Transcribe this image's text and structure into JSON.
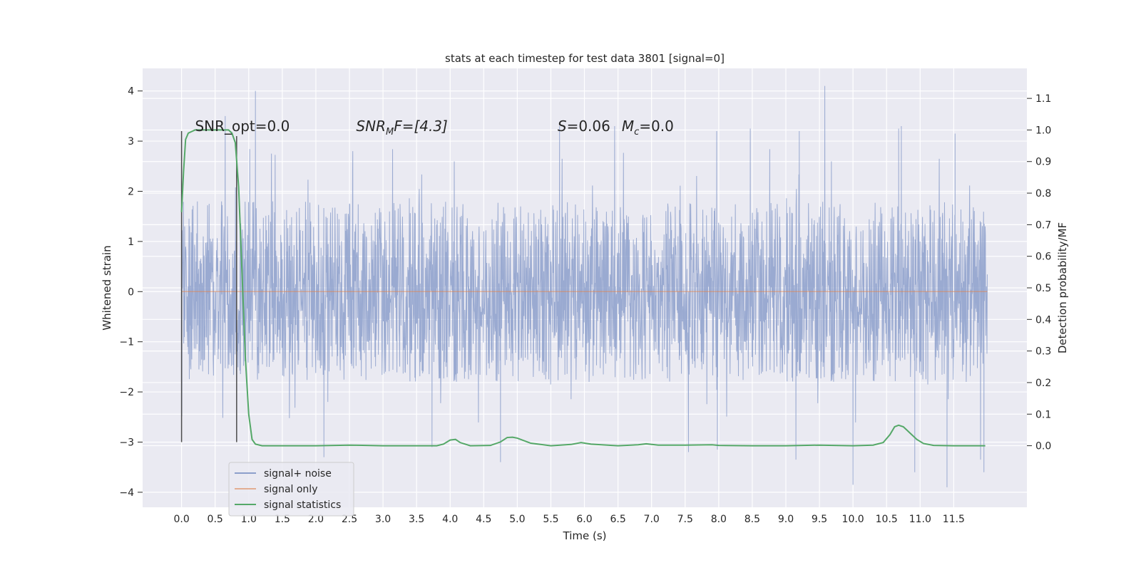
{
  "chart_data": {
    "type": "line",
    "title": "stats at each timestep for test data 3801 [signal=0]",
    "xlabel": "Time (s)",
    "ylabel_left": "Whitened strain",
    "ylabel_right": "Detection probability/MF",
    "xlim": [
      -0.58,
      12.59
    ],
    "ylim_left": [
      -4.3,
      4.45
    ],
    "ylim_right": [
      -0.195,
      1.195
    ],
    "x_ticks": [
      0.0,
      0.5,
      1.0,
      1.5,
      2.0,
      2.5,
      3.0,
      3.5,
      4.0,
      4.5,
      5.0,
      5.5,
      6.0,
      6.5,
      7.0,
      7.5,
      8.0,
      8.5,
      9.0,
      9.5,
      10.0,
      10.5,
      11.0,
      11.5
    ],
    "x_tick_labels": [
      "0.0",
      "0.5",
      "1.0",
      "1.5",
      "2.0",
      "2.5",
      "3.0",
      "3.5",
      "4.0",
      "4.5",
      "5.0",
      "5.5",
      "6.0",
      "6.5",
      "7.0",
      "7.5",
      "8.0",
      "8.5",
      "9.0",
      "9.5",
      "10.0",
      "10.5",
      "11.0",
      "11.5"
    ],
    "y_left_ticks": [
      4,
      3,
      2,
      1,
      0,
      -1,
      -2,
      -3,
      -4
    ],
    "y_left_tick_labels": [
      "4",
      "3",
      "2",
      "1",
      "0",
      "−1",
      "−2",
      "−3",
      "−4"
    ],
    "y_right_ticks": [
      1.1,
      1.0,
      0.9,
      0.8,
      0.7,
      0.6,
      0.5,
      0.4,
      0.3,
      0.2,
      0.1,
      0.0
    ],
    "y_right_tick_labels": [
      "1.1",
      "1.0",
      "0.9",
      "0.8",
      "0.7",
      "0.6",
      "0.5",
      "0.4",
      "0.3",
      "0.2",
      "0.1",
      "0.0"
    ],
    "grid": true,
    "legend_position": "lower-left",
    "series": [
      {
        "name": "signal+ noise",
        "axis": "left",
        "color": "#8c9fcb",
        "style": "dense noise trace",
        "x_range": [
          0.0,
          12.0
        ],
        "typical_band": [
          -1.8,
          1.8
        ],
        "peaks": [
          {
            "x": 1.1,
            "y": 4.0
          },
          {
            "x": 0.65,
            "y": 3.5
          },
          {
            "x": 9.58,
            "y": 4.1
          },
          {
            "x": 10.72,
            "y": 3.3
          },
          {
            "x": 10.68,
            "y": 3.25
          },
          {
            "x": 8.47,
            "y": 3.25
          },
          {
            "x": 7.97,
            "y": 3.2
          },
          {
            "x": 5.63,
            "y": 3.3
          },
          {
            "x": 9.2,
            "y": 3.2
          },
          {
            "x": 11.52,
            "y": 3.15
          },
          {
            "x": 6.45,
            "y": 3.3
          },
          {
            "x": 2.55,
            "y": 2.8
          }
        ],
        "troughs": [
          {
            "x": 2.12,
            "y": -3.3
          },
          {
            "x": 3.73,
            "y": -3.1
          },
          {
            "x": 4.75,
            "y": -3.4
          },
          {
            "x": 7.55,
            "y": -3.2
          },
          {
            "x": 7.98,
            "y": -3.15
          },
          {
            "x": 9.15,
            "y": -3.35
          },
          {
            "x": 10.0,
            "y": -3.85
          },
          {
            "x": 10.92,
            "y": -3.6
          },
          {
            "x": 11.4,
            "y": -3.9
          },
          {
            "x": 11.95,
            "y": -3.6
          },
          {
            "x": 11.9,
            "y": -3.35
          }
        ]
      },
      {
        "name": "signal only",
        "axis": "left",
        "color": "#dd8452",
        "x": [
          0.0,
          12.0
        ],
        "y": [
          0.0,
          0.0
        ]
      },
      {
        "name": "signal statistics",
        "axis": "right",
        "color": "#55a868",
        "x": [
          0.0,
          0.03,
          0.06,
          0.1,
          0.15,
          0.2,
          0.3,
          0.4,
          0.5,
          0.6,
          0.7,
          0.75,
          0.8,
          0.85,
          0.9,
          0.95,
          1.0,
          1.05,
          1.1,
          1.2,
          1.5,
          2.0,
          2.5,
          3.0,
          3.5,
          3.8,
          3.9,
          4.0,
          4.08,
          4.15,
          4.3,
          4.6,
          4.75,
          4.85,
          4.93,
          5.0,
          5.2,
          5.5,
          5.8,
          5.95,
          6.1,
          6.5,
          6.8,
          6.92,
          7.1,
          7.5,
          7.9,
          8.0,
          8.5,
          9.0,
          9.5,
          10.0,
          10.3,
          10.45,
          10.55,
          10.62,
          10.68,
          10.75,
          10.85,
          10.95,
          11.05,
          11.2,
          11.5,
          11.8,
          11.97
        ],
        "y": [
          0.74,
          0.87,
          0.97,
          0.99,
          0.995,
          1.0,
          1.0,
          1.0,
          1.0,
          1.0,
          1.0,
          0.99,
          0.96,
          0.82,
          0.55,
          0.28,
          0.1,
          0.02,
          0.005,
          0.0,
          0.0,
          0.0,
          0.002,
          0.0,
          0.0,
          0.0,
          0.005,
          0.018,
          0.02,
          0.01,
          0.0,
          0.001,
          0.012,
          0.026,
          0.027,
          0.024,
          0.008,
          0.0,
          0.004,
          0.01,
          0.005,
          0.0,
          0.003,
          0.006,
          0.002,
          0.002,
          0.003,
          0.001,
          0.0,
          0.0,
          0.002,
          0.0,
          0.002,
          0.01,
          0.035,
          0.06,
          0.065,
          0.06,
          0.04,
          0.02,
          0.007,
          0.001,
          0.0,
          0.0,
          0.0
        ]
      }
    ],
    "vlines": [
      {
        "x": 0.0,
        "y_range": [
          -3.0,
          3.2
        ],
        "color": "#4c4c4c"
      },
      {
        "x": 0.82,
        "y_range": [
          -3.0,
          3.1
        ],
        "color": "#4c4c4c"
      }
    ],
    "annotations": [
      {
        "kind": "plain",
        "text": "SNR_opt=0.0",
        "x": 0.2,
        "y": 3.2
      },
      {
        "kind": "snrmf",
        "base": "SNR",
        "sub": "M",
        "tail": "F=[4.3]",
        "x": 2.6,
        "y": 3.2
      },
      {
        "kind": "sm",
        "s_var": "S",
        "s_val": "=0.06",
        "m_var": "M",
        "m_sub": "c",
        "m_val": "=0.0",
        "x": 5.6,
        "y": 3.2
      }
    ]
  }
}
